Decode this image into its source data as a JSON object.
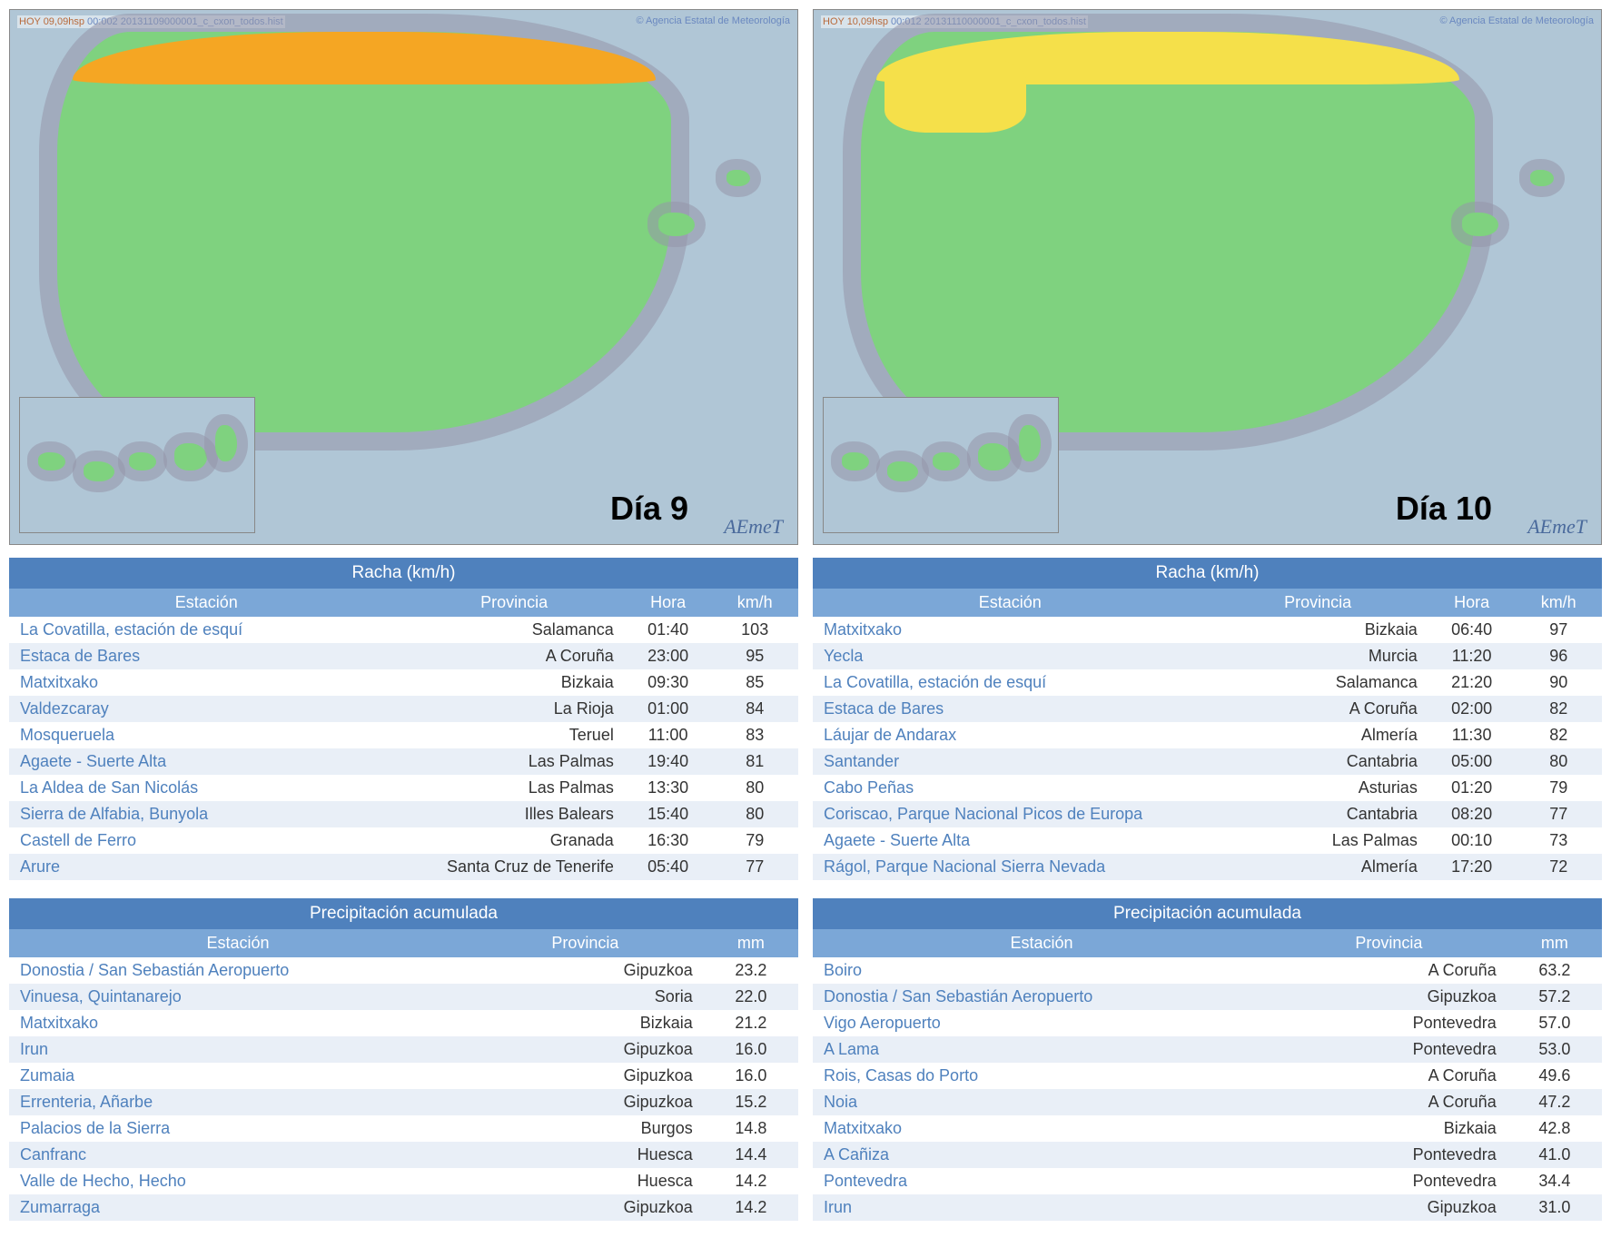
{
  "left": {
    "map_label": "Día 9",
    "map_topleft": "HOY 09,09hsp",
    "map_code": "00:002 20131109000001_c_cxon_todos.hist",
    "map_credit": "© Agencia Estatal de Meteorología",
    "aemet": "AEmeT",
    "north_color": "#f5a623",
    "racha": {
      "title": "Racha (km/h)",
      "columns": [
        "Estación",
        "Provincia",
        "Hora",
        "km/h"
      ],
      "rows": [
        {
          "estacion": "La Covatilla, estación de esquí",
          "provincia": "Salamanca",
          "hora": "01:40",
          "val": "103"
        },
        {
          "estacion": "Estaca de Bares",
          "provincia": "A Coruña",
          "hora": "23:00",
          "val": "95"
        },
        {
          "estacion": "Matxitxako",
          "provincia": "Bizkaia",
          "hora": "09:30",
          "val": "85"
        },
        {
          "estacion": "Valdezcaray",
          "provincia": "La Rioja",
          "hora": "01:00",
          "val": "84"
        },
        {
          "estacion": "Mosqueruela",
          "provincia": "Teruel",
          "hora": "11:00",
          "val": "83"
        },
        {
          "estacion": "Agaete - Suerte Alta",
          "provincia": "Las Palmas",
          "hora": "19:40",
          "val": "81"
        },
        {
          "estacion": "La Aldea de San Nicolás",
          "provincia": "Las Palmas",
          "hora": "13:30",
          "val": "80"
        },
        {
          "estacion": "Sierra de Alfabia, Bunyola",
          "provincia": "Illes Balears",
          "hora": "15:40",
          "val": "80"
        },
        {
          "estacion": "Castell de Ferro",
          "provincia": "Granada",
          "hora": "16:30",
          "val": "79"
        },
        {
          "estacion": "Arure",
          "provincia": "Santa Cruz de Tenerife",
          "hora": "05:40",
          "val": "77"
        }
      ]
    },
    "precip": {
      "title": "Precipitación acumulada",
      "columns": [
        "Estación",
        "Provincia",
        "mm"
      ],
      "rows": [
        {
          "estacion": "Donostia / San Sebastián Aeropuerto",
          "provincia": "Gipuzkoa",
          "val": "23.2"
        },
        {
          "estacion": "Vinuesa, Quintanarejo",
          "provincia": "Soria",
          "val": "22.0"
        },
        {
          "estacion": "Matxitxako",
          "provincia": "Bizkaia",
          "val": "21.2"
        },
        {
          "estacion": "Irun",
          "provincia": "Gipuzkoa",
          "val": "16.0"
        },
        {
          "estacion": "Zumaia",
          "provincia": "Gipuzkoa",
          "val": "16.0"
        },
        {
          "estacion": "Errenteria, Añarbe",
          "provincia": "Gipuzkoa",
          "val": "15.2"
        },
        {
          "estacion": "Palacios de la Sierra",
          "provincia": "Burgos",
          "val": "14.8"
        },
        {
          "estacion": "Canfranc",
          "provincia": "Huesca",
          "val": "14.4"
        },
        {
          "estacion": "Valle de Hecho, Hecho",
          "provincia": "Huesca",
          "val": "14.2"
        },
        {
          "estacion": "Zumarraga",
          "provincia": "Gipuzkoa",
          "val": "14.2"
        }
      ]
    }
  },
  "right": {
    "map_label": "Día 10",
    "map_topleft": "HOY 10,09hsp",
    "map_code": "00:012 20131110000001_c_cxon_todos.hist",
    "map_credit": "© Agencia Estatal de Meteorología",
    "aemet": "AEmeT",
    "north_color": "#f5e04a",
    "racha": {
      "title": "Racha (km/h)",
      "columns": [
        "Estación",
        "Provincia",
        "Hora",
        "km/h"
      ],
      "rows": [
        {
          "estacion": "Matxitxako",
          "provincia": "Bizkaia",
          "hora": "06:40",
          "val": "97"
        },
        {
          "estacion": "Yecla",
          "provincia": "Murcia",
          "hora": "11:20",
          "val": "96"
        },
        {
          "estacion": "La Covatilla, estación de esquí",
          "provincia": "Salamanca",
          "hora": "21:20",
          "val": "90"
        },
        {
          "estacion": "Estaca de Bares",
          "provincia": "A Coruña",
          "hora": "02:00",
          "val": "82"
        },
        {
          "estacion": "Láujar de Andarax",
          "provincia": "Almería",
          "hora": "11:30",
          "val": "82"
        },
        {
          "estacion": "Santander",
          "provincia": "Cantabria",
          "hora": "05:00",
          "val": "80"
        },
        {
          "estacion": "Cabo Peñas",
          "provincia": "Asturias",
          "hora": "01:20",
          "val": "79"
        },
        {
          "estacion": "Coriscao, Parque Nacional Picos de Europa",
          "provincia": "Cantabria",
          "hora": "08:20",
          "val": "77"
        },
        {
          "estacion": "Agaete - Suerte Alta",
          "provincia": "Las Palmas",
          "hora": "00:10",
          "val": "73"
        },
        {
          "estacion": "Rágol, Parque Nacional Sierra Nevada",
          "provincia": "Almería",
          "hora": "17:20",
          "val": "72"
        }
      ]
    },
    "precip": {
      "title": "Precipitación acumulada",
      "columns": [
        "Estación",
        "Provincia",
        "mm"
      ],
      "rows": [
        {
          "estacion": "Boiro",
          "provincia": "A Coruña",
          "val": "63.2"
        },
        {
          "estacion": "Donostia / San Sebastián Aeropuerto",
          "provincia": "Gipuzkoa",
          "val": "57.2"
        },
        {
          "estacion": "Vigo Aeropuerto",
          "provincia": "Pontevedra",
          "val": "57.0"
        },
        {
          "estacion": "A Lama",
          "provincia": "Pontevedra",
          "val": "53.0"
        },
        {
          "estacion": "Rois, Casas do Porto",
          "provincia": "A Coruña",
          "val": "49.6"
        },
        {
          "estacion": "Noia",
          "provincia": "A Coruña",
          "val": "47.2"
        },
        {
          "estacion": "Matxitxako",
          "provincia": "Bizkaia",
          "val": "42.8"
        },
        {
          "estacion": "A Cañiza",
          "provincia": "Pontevedra",
          "val": "41.0"
        },
        {
          "estacion": "Pontevedra",
          "provincia": "Pontevedra",
          "val": "34.4"
        },
        {
          "estacion": "Irun",
          "provincia": "Gipuzkoa",
          "val": "31.0"
        }
      ]
    }
  },
  "col_widths_racha": [
    "50%",
    "28%",
    "11%",
    "11%"
  ],
  "col_widths_precip": [
    "58%",
    "30%",
    "12%"
  ]
}
